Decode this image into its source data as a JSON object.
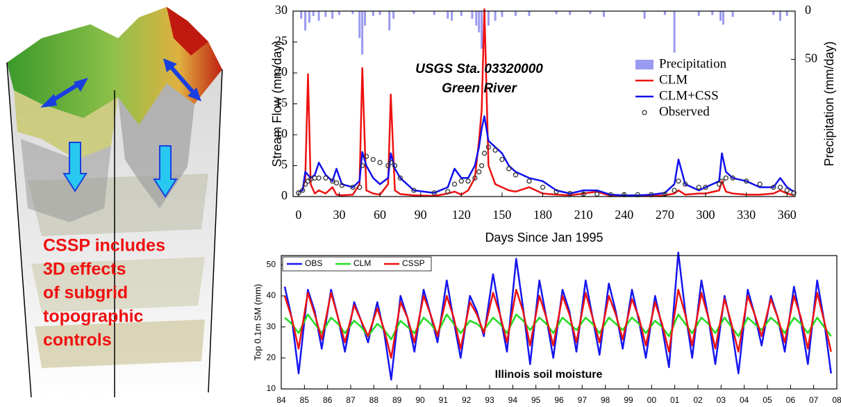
{
  "illustration": {
    "caption": [
      "CSSP includes",
      "3D effects",
      "of subgrid",
      "topographic",
      "controls"
    ]
  },
  "chart_data": [
    {
      "type": "line",
      "annotations": [
        "USGS Sta. 03320000",
        "Green River"
      ],
      "xlabel": "Days Since Jan 1995",
      "ylabel": "Stream Flow (mm/day)",
      "y2label": "Precipitation (mm/day)",
      "xlim": [
        -4,
        366
      ],
      "xticks": [
        0,
        30,
        60,
        90,
        120,
        150,
        180,
        210,
        240,
        270,
        300,
        330,
        360
      ],
      "ylim": [
        0,
        30
      ],
      "yticks": [
        0,
        5,
        10,
        15,
        20,
        25,
        30
      ],
      "y2lim": [
        0,
        192
      ],
      "y2ticks": [
        0,
        50
      ],
      "y2_inverted": true,
      "legend": "upper right",
      "x": [
        0,
        3,
        5,
        7,
        9,
        12,
        15,
        20,
        25,
        28,
        32,
        40,
        45,
        47,
        50,
        55,
        60,
        66,
        68,
        71,
        75,
        85,
        100,
        110,
        115,
        120,
        125,
        130,
        133,
        135,
        137,
        140,
        145,
        150,
        155,
        160,
        170,
        180,
        190,
        200,
        210,
        220,
        230,
        240,
        250,
        260,
        270,
        277,
        280,
        285,
        295,
        300,
        310,
        312,
        315,
        320,
        330,
        340,
        350,
        355,
        360,
        365
      ],
      "series": [
        {
          "name": "Precipitation",
          "kind": "bar",
          "axis": "y2",
          "color": "#9a9af0",
          "x": [
            2,
            5,
            8,
            11,
            15,
            20,
            25,
            30,
            40,
            45,
            47,
            49,
            55,
            60,
            67,
            70,
            85,
            100,
            110,
            113,
            120,
            128,
            131,
            133,
            135,
            137,
            140,
            145,
            150,
            160,
            170,
            190,
            200,
            215,
            225,
            255,
            270,
            277,
            295,
            305,
            311,
            313,
            320,
            350,
            355,
            360
          ],
          "values": [
            8,
            20,
            12,
            5,
            10,
            6,
            8,
            4,
            3,
            28,
            45,
            15,
            5,
            4,
            20,
            8,
            3,
            4,
            8,
            10,
            5,
            8,
            15,
            22,
            39,
            25,
            15,
            10,
            6,
            5,
            5,
            3,
            4,
            3,
            6,
            8,
            4,
            43,
            5,
            4,
            10,
            14,
            6,
            4,
            10,
            5
          ]
        },
        {
          "name": "CLM",
          "kind": "line",
          "color": "#ee1111",
          "values": [
            0.8,
            1,
            3,
            19.8,
            2,
            0.5,
            1,
            0.5,
            1.5,
            0.3,
            0.2,
            0.3,
            2,
            20.8,
            1,
            0.5,
            0.3,
            2,
            16.5,
            1,
            0.4,
            0.2,
            0.1,
            0.5,
            0.8,
            0.3,
            1,
            3,
            9,
            14,
            30.3,
            5,
            2,
            1.5,
            1,
            0.8,
            1.5,
            0.5,
            0.3,
            0.2,
            0.5,
            0.8,
            0.1,
            0.1,
            0.1,
            0.1,
            0.2,
            0.5,
            1,
            0.3,
            0.5,
            0.5,
            1,
            2.5,
            0.8,
            0.5,
            0.3,
            0.3,
            0.5,
            1,
            0.5,
            0.2
          ]
        },
        {
          "name": "CLM+CSS",
          "kind": "line",
          "color": "#1010ee",
          "values": [
            0.8,
            1,
            4,
            3.5,
            3,
            3.5,
            5.5,
            3.5,
            2.5,
            4.5,
            2,
            1.5,
            2.5,
            7.2,
            5,
            3,
            2,
            3,
            7,
            4.5,
            3,
            1,
            0.6,
            1.5,
            4.5,
            3,
            3,
            5,
            8,
            11,
            13,
            9,
            8,
            7,
            5,
            4,
            3,
            2.5,
            1,
            0.5,
            1,
            1,
            0.3,
            0.2,
            0.2,
            0.3,
            0.6,
            2,
            6,
            2,
            1,
            1.5,
            2.5,
            7,
            4,
            3,
            2.5,
            1.5,
            1.5,
            3,
            1.5,
            0.8
          ]
        },
        {
          "name": "Observed",
          "kind": "scatter",
          "color": "#333333",
          "values": [
            0.6,
            1,
            2,
            2.5,
            2.8,
            3,
            3,
            3,
            2.5,
            2.2,
            1.8,
            1.5,
            1.5,
            5,
            6.5,
            6,
            5.5,
            5,
            5.5,
            5,
            3,
            1,
            0.6,
            0.8,
            2,
            2.5,
            2.5,
            3,
            4,
            5,
            7,
            8,
            7.5,
            6,
            4.5,
            3.5,
            2.5,
            1.5,
            0.8,
            0.5,
            0.4,
            0.4,
            0.3,
            0.3,
            0.3,
            0.3,
            0.4,
            1,
            2.5,
            2,
            1.5,
            1.5,
            2,
            2.5,
            3,
            3,
            2.5,
            2,
            1.5,
            1.5,
            1,
            0.6
          ]
        }
      ]
    },
    {
      "type": "line",
      "annotations": [
        "Illinois soil moisture"
      ],
      "ylabel": "Top 0.1m SM (mm)",
      "xlim": [
        1984,
        2008
      ],
      "xticks": [
        {
          "value": 1984,
          "label": "84"
        },
        {
          "value": 1985,
          "label": "85"
        },
        {
          "value": 1986,
          "label": "86"
        },
        {
          "value": 1987,
          "label": "87"
        },
        {
          "value": 1988,
          "label": "88"
        },
        {
          "value": 1989,
          "label": "89"
        },
        {
          "value": 1990,
          "label": "90"
        },
        {
          "value": 1991,
          "label": "91"
        },
        {
          "value": 1992,
          "label": "92"
        },
        {
          "value": 1993,
          "label": "93"
        },
        {
          "value": 1994,
          "label": "94"
        },
        {
          "value": 1995,
          "label": "95"
        },
        {
          "value": 1996,
          "label": "96"
        },
        {
          "value": 1997,
          "label": "97"
        },
        {
          "value": 1998,
          "label": "98"
        },
        {
          "value": 1999,
          "label": "99"
        },
        {
          "value": 2000,
          "label": "00"
        },
        {
          "value": 2001,
          "label": "01"
        },
        {
          "value": 2002,
          "label": "02"
        },
        {
          "value": 2003,
          "label": "03"
        },
        {
          "value": 2004,
          "label": "04"
        },
        {
          "value": 2005,
          "label": "05"
        },
        {
          "value": 2006,
          "label": "06"
        },
        {
          "value": 2007,
          "label": "07"
        },
        {
          "value": 2008,
          "label": "08"
        }
      ],
      "ylim": [
        10,
        53
      ],
      "yticks": [
        10,
        20,
        30,
        40,
        50
      ],
      "legend": "upper left",
      "x": [
        1984.15,
        1984.45,
        1984.75,
        1985.15,
        1985.45,
        1985.75,
        1986.15,
        1986.45,
        1986.75,
        1987.15,
        1987.45,
        1987.75,
        1988.15,
        1988.45,
        1988.75,
        1989.15,
        1989.45,
        1989.75,
        1990.15,
        1990.45,
        1990.75,
        1991.15,
        1991.45,
        1991.75,
        1992.15,
        1992.45,
        1992.75,
        1993.15,
        1993.45,
        1993.75,
        1994.15,
        1994.45,
        1994.75,
        1995.15,
        1995.45,
        1995.75,
        1996.15,
        1996.45,
        1996.75,
        1997.15,
        1997.45,
        1997.75,
        1998.15,
        1998.45,
        1998.75,
        1999.15,
        1999.45,
        1999.75,
        2000.15,
        2000.45,
        2000.75,
        2001.15,
        2001.45,
        2001.75,
        2002.15,
        2002.45,
        2002.75,
        2003.15,
        2003.45,
        2003.75,
        2004.15,
        2004.45,
        2004.75,
        2005.15,
        2005.45,
        2005.75,
        2006.15,
        2006.45,
        2006.75,
        2007.15,
        2007.45,
        2007.75
      ],
      "series": [
        {
          "name": "OBS",
          "kind": "line",
          "color": "#1515ee",
          "values": [
            43,
            33,
            15,
            42,
            35,
            23,
            42,
            33,
            22,
            38,
            32,
            25,
            38,
            28,
            13,
            40,
            33,
            22,
            42,
            34,
            25,
            45,
            32,
            20,
            40,
            35,
            27,
            47,
            34,
            22,
            52,
            36,
            18,
            45,
            33,
            20,
            42,
            35,
            22,
            45,
            33,
            21,
            44,
            35,
            23,
            42,
            32,
            20,
            40,
            30,
            17,
            54,
            35,
            20,
            45,
            33,
            18,
            40,
            30,
            15,
            42,
            34,
            24,
            40,
            33,
            22,
            43,
            32,
            18,
            45,
            32,
            15
          ]
        },
        {
          "name": "CLM",
          "kind": "line",
          "color": "#22dd22",
          "values": [
            33,
            31,
            28,
            34,
            31,
            28,
            33,
            31,
            28,
            32,
            30,
            27,
            31,
            29,
            26,
            32,
            30,
            28,
            33,
            31,
            28,
            34,
            31,
            28,
            32,
            31,
            29,
            33,
            31,
            28,
            34,
            32,
            29,
            33,
            31,
            28,
            33,
            31,
            29,
            33,
            31,
            28,
            33,
            31,
            29,
            33,
            31,
            28,
            32,
            30,
            27,
            34,
            31,
            28,
            33,
            31,
            28,
            33,
            30,
            27,
            33,
            31,
            29,
            33,
            31,
            28,
            33,
            31,
            28,
            33,
            30,
            27
          ]
        },
        {
          "name": "CSSP",
          "kind": "line",
          "color": "#ee1111",
          "values": [
            40,
            33,
            23,
            41,
            34,
            26,
            41,
            33,
            25,
            37,
            32,
            27,
            36,
            29,
            20,
            38,
            33,
            25,
            40,
            34,
            27,
            40,
            33,
            23,
            38,
            34,
            28,
            41,
            34,
            25,
            42,
            35,
            24,
            40,
            33,
            24,
            40,
            34,
            25,
            41,
            33,
            25,
            40,
            34,
            26,
            39,
            33,
            24,
            38,
            31,
            22,
            42,
            34,
            24,
            41,
            33,
            23,
            39,
            31,
            22,
            40,
            34,
            27,
            39,
            33,
            25,
            40,
            33,
            23,
            41,
            32,
            22
          ]
        }
      ]
    }
  ]
}
